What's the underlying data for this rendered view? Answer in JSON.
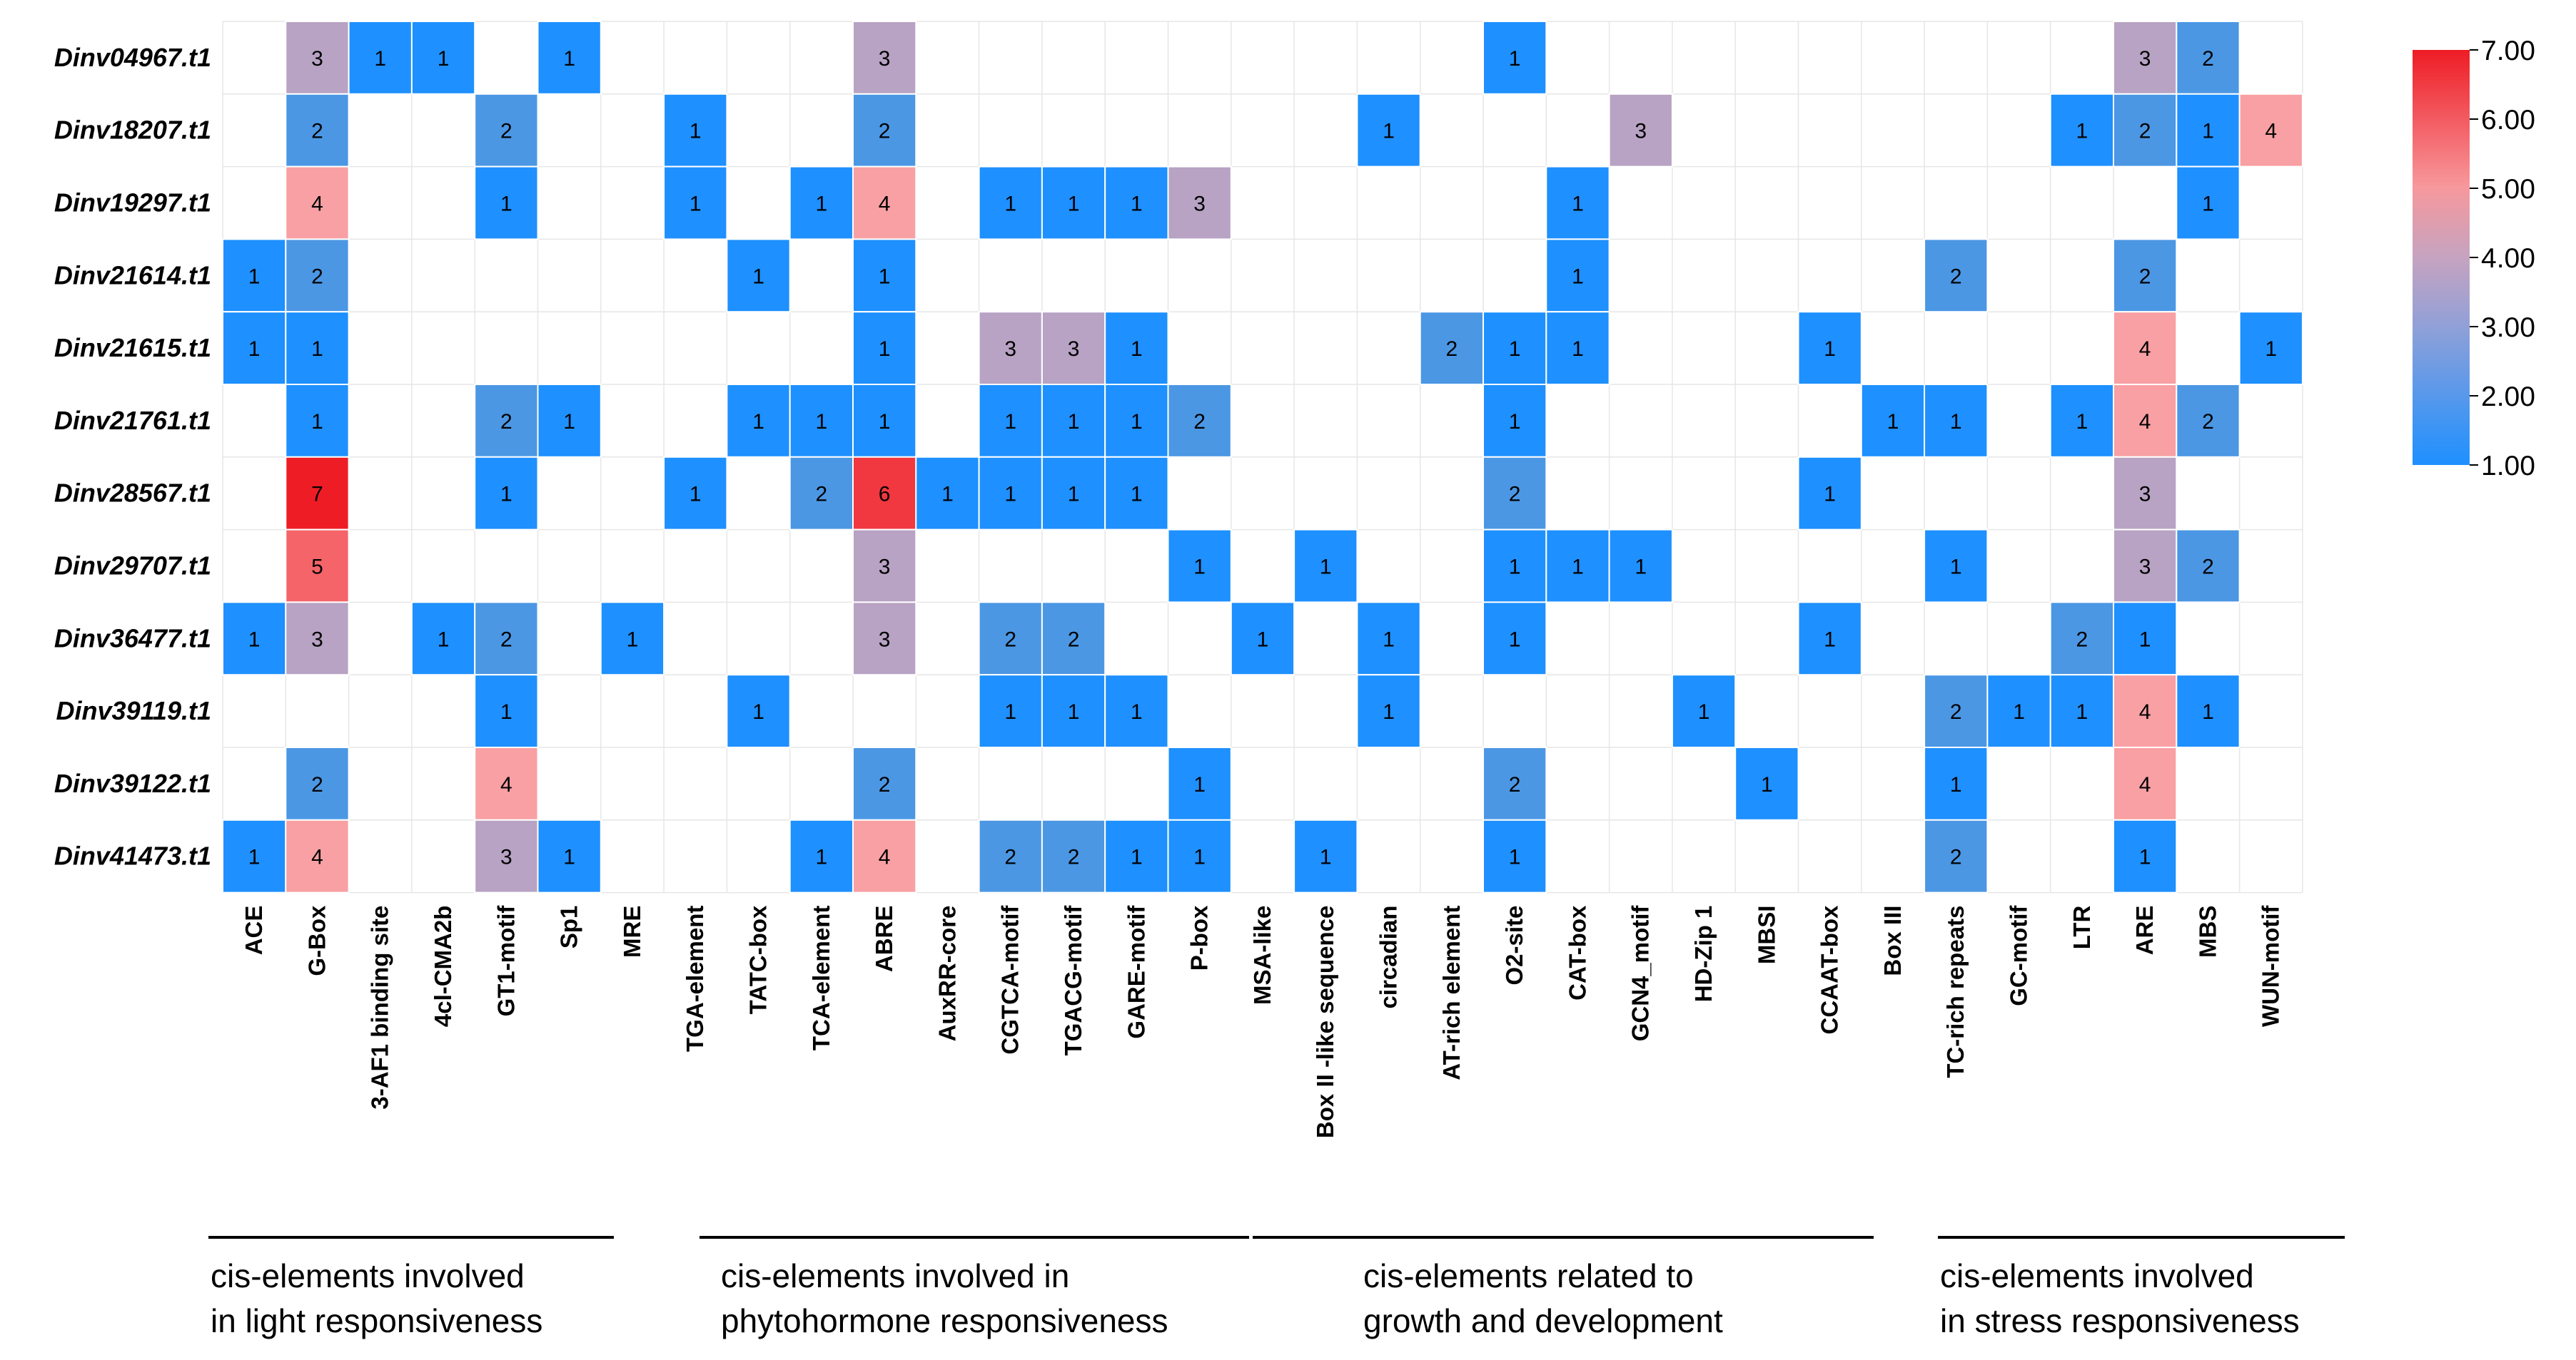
{
  "chart_data": {
    "type": "heatmap",
    "rows": [
      "Dinv04967.t1",
      "Dinv18207.t1",
      "Dinv19297.t1",
      "Dinv21614.t1",
      "Dinv21615.t1",
      "Dinv21761.t1",
      "Dinv28567.t1",
      "Dinv29707.t1",
      "Dinv36477.t1",
      "Dinv39119.t1",
      "Dinv39122.t1",
      "Dinv41473.t1"
    ],
    "columns": [
      "ACE",
      "G-Box",
      "3-AF1 binding site",
      "4cl-CMA2b",
      "GT1-motif",
      "Sp1",
      "MRE",
      "TGA-element",
      "TATC-box",
      "TCA-element",
      "ABRE",
      "AuxRR-core",
      "CGTCA-motif",
      "TGACG-motif",
      "GARE-motif",
      "P-box",
      "MSA-like",
      "Box II -like sequence",
      "circadian",
      "AT-rich element",
      "O2-site",
      "CAT-box",
      "GCN4_motif",
      "HD-Zip 1",
      "MBSI",
      "CCAAT-box",
      "Box III",
      "TC-rich repeats",
      "GC-motif",
      "LTR",
      "ARE",
      "MBS",
      "WUN-motif"
    ],
    "values": [
      [
        null,
        3,
        1,
        1,
        null,
        1,
        null,
        null,
        null,
        null,
        3,
        null,
        null,
        null,
        null,
        null,
        null,
        null,
        null,
        null,
        1,
        null,
        null,
        null,
        null,
        null,
        null,
        null,
        null,
        null,
        3,
        2,
        null
      ],
      [
        null,
        2,
        null,
        null,
        2,
        null,
        null,
        1,
        null,
        null,
        2,
        null,
        null,
        null,
        null,
        null,
        null,
        null,
        1,
        null,
        null,
        null,
        3,
        null,
        null,
        null,
        null,
        null,
        null,
        1,
        2,
        1,
        4
      ],
      [
        null,
        4,
        null,
        null,
        1,
        null,
        null,
        1,
        null,
        1,
        4,
        null,
        1,
        1,
        1,
        3,
        null,
        null,
        null,
        null,
        null,
        1,
        null,
        null,
        null,
        null,
        null,
        null,
        null,
        null,
        null,
        1,
        null
      ],
      [
        1,
        2,
        null,
        null,
        null,
        null,
        null,
        null,
        1,
        null,
        1,
        null,
        null,
        null,
        null,
        null,
        null,
        null,
        null,
        null,
        null,
        1,
        null,
        null,
        null,
        null,
        null,
        2,
        null,
        null,
        2,
        null,
        null
      ],
      [
        1,
        1,
        null,
        null,
        null,
        null,
        null,
        null,
        null,
        null,
        1,
        null,
        3,
        3,
        1,
        null,
        null,
        null,
        null,
        2,
        1,
        1,
        null,
        null,
        null,
        1,
        null,
        null,
        null,
        null,
        4,
        null,
        1
      ],
      [
        null,
        1,
        null,
        null,
        2,
        1,
        null,
        null,
        1,
        1,
        1,
        null,
        1,
        1,
        1,
        2,
        null,
        null,
        null,
        null,
        1,
        null,
        null,
        null,
        null,
        null,
        1,
        1,
        null,
        1,
        4,
        2,
        null
      ],
      [
        null,
        7,
        null,
        null,
        1,
        null,
        null,
        1,
        null,
        2,
        6,
        1,
        1,
        1,
        1,
        null,
        null,
        null,
        null,
        null,
        2,
        null,
        null,
        null,
        null,
        1,
        null,
        null,
        null,
        null,
        3,
        null,
        null
      ],
      [
        null,
        5,
        null,
        null,
        null,
        null,
        null,
        null,
        null,
        null,
        3,
        null,
        null,
        null,
        null,
        1,
        null,
        1,
        null,
        null,
        1,
        1,
        1,
        null,
        null,
        null,
        null,
        1,
        null,
        null,
        3,
        2,
        null
      ],
      [
        1,
        3,
        null,
        1,
        2,
        null,
        1,
        null,
        null,
        null,
        3,
        null,
        2,
        2,
        null,
        null,
        1,
        null,
        1,
        null,
        1,
        null,
        null,
        null,
        null,
        1,
        null,
        null,
        null,
        2,
        1,
        null,
        null
      ],
      [
        null,
        null,
        null,
        null,
        1,
        null,
        null,
        null,
        1,
        null,
        null,
        null,
        1,
        1,
        1,
        null,
        null,
        null,
        1,
        null,
        null,
        null,
        null,
        1,
        null,
        null,
        null,
        2,
        1,
        1,
        4,
        1,
        null
      ],
      [
        null,
        2,
        null,
        null,
        4,
        null,
        null,
        null,
        null,
        null,
        2,
        null,
        null,
        null,
        null,
        1,
        null,
        null,
        null,
        null,
        2,
        null,
        null,
        null,
        1,
        null,
        null,
        1,
        null,
        null,
        4,
        null,
        null
      ],
      [
        1,
        4,
        null,
        null,
        3,
        1,
        null,
        null,
        null,
        1,
        4,
        null,
        2,
        2,
        1,
        1,
        null,
        1,
        null,
        null,
        1,
        null,
        null,
        null,
        null,
        null,
        null,
        2,
        null,
        null,
        1,
        null,
        null
      ]
    ],
    "colorbar": {
      "min": 1,
      "max": 7,
      "ticks": [
        "7.00",
        "6.00",
        "5.00",
        "4.00",
        "3.00",
        "2.00",
        "1.00"
      ],
      "colors": {
        "low": "#1e90ff",
        "mid": "#b8a3c4",
        "high": "#ee1c25"
      }
    },
    "groups": [
      {
        "line1": "cis-elements involved",
        "line2": "in light responsiveness",
        "start": 0,
        "end": 6
      },
      {
        "line1": "cis-elements involved in",
        "line2": "phytohormone responsiveness",
        "start": 7,
        "end": 15
      },
      {
        "line1": "cis-elements related to",
        "line2": "growth and development",
        "start": 16,
        "end": 25
      },
      {
        "line1": "cis-elements involved",
        "line2": "in stress responsiveness",
        "start": 26,
        "end": 32
      }
    ]
  }
}
